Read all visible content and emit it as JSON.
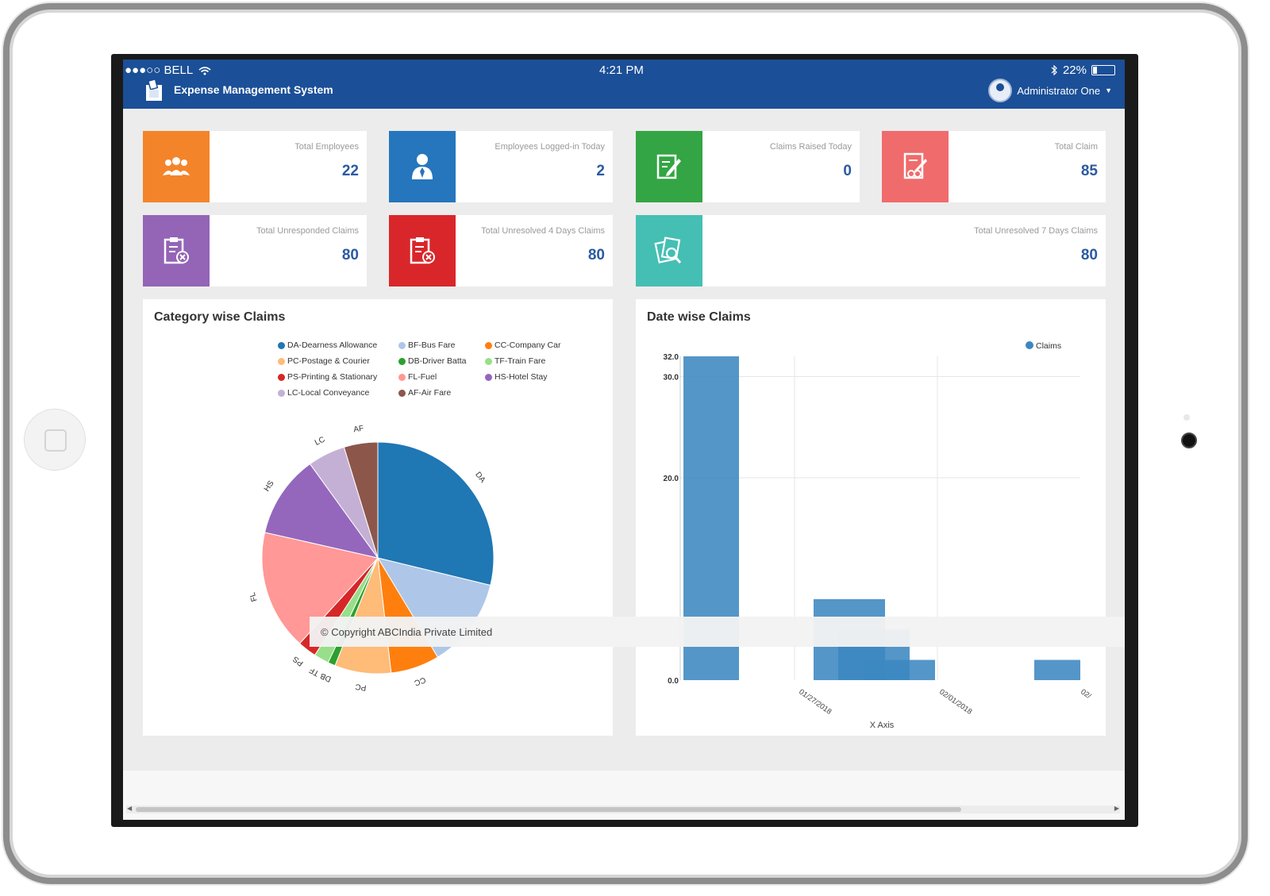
{
  "status_bar": {
    "carrier": "●●●○○ BELL",
    "time": "4:21 PM",
    "battery": "22%"
  },
  "app": {
    "title": "Expense Management System",
    "user": "Administrator One"
  },
  "colors": {
    "header": "#1b4f97",
    "orange": "#f4842a",
    "blue": "#2576bd",
    "green": "#33a544",
    "salmon": "#f06b6b",
    "purple": "#9464b6",
    "red": "#d9262a",
    "teal": "#45bfb3",
    "value": "#2c5aa0"
  },
  "cards": [
    {
      "label": "Total Employees",
      "value": "22",
      "icon": "users-group-icon"
    },
    {
      "label": "Employees Logged-in Today",
      "value": "2",
      "icon": "user-tie-icon"
    },
    {
      "label": "Claims Raised Today",
      "value": "0",
      "icon": "edit-document-icon"
    },
    {
      "label": "Total Claim",
      "value": "85",
      "icon": "document-stamp-icon"
    },
    {
      "label": "Total Unresponded Claims",
      "value": "80",
      "icon": "clipboard-cancel-icon"
    },
    {
      "label": "Total Unresolved 4 Days Claims",
      "value": "80",
      "icon": "clipboard-cancel-icon"
    },
    {
      "label": "Total Unresolved 7 Days Claims",
      "value": "80",
      "icon": "documents-search-icon"
    }
  ],
  "category_panel": {
    "title": "Category wise Claims"
  },
  "date_panel": {
    "title": "Date wise Claims"
  },
  "copyright": "© Copyright ABCIndia Private Limited",
  "chart_data": [
    {
      "type": "pie",
      "title": "Category wise Claims",
      "legend": [
        {
          "name": "DA-Dearness Allowance",
          "color": "#1f77b4"
        },
        {
          "name": "BF-Bus Fare",
          "color": "#aec7e8"
        },
        {
          "name": "CC-Company Car",
          "color": "#ff7f0e"
        },
        {
          "name": "PC-Postage & Courier",
          "color": "#ffbb78"
        },
        {
          "name": "DB-Driver Batta",
          "color": "#2ca02c"
        },
        {
          "name": "TF-Train Fare",
          "color": "#98df8a"
        },
        {
          "name": "PS-Printing & Stationary",
          "color": "#d62728"
        },
        {
          "name": "FL-Fuel",
          "color": "#ff9896"
        },
        {
          "name": "HS-Hotel Stay",
          "color": "#9467bd"
        },
        {
          "name": "LC-Local Conveyance",
          "color": "#c5b0d5"
        },
        {
          "name": "AF-Air Fare",
          "color": "#8c564b"
        }
      ],
      "slices": [
        {
          "label": "DA",
          "value": 27.5,
          "color": "#1f77b4"
        },
        {
          "label": "BF",
          "value": 12,
          "color": "#aec7e8"
        },
        {
          "label": "CC",
          "value": 6.5,
          "color": "#ff7f0e"
        },
        {
          "label": "PC",
          "value": 7.5,
          "color": "#ffbb78"
        },
        {
          "label": "DB",
          "value": 1,
          "color": "#2ca02c"
        },
        {
          "label": "TF",
          "value": 2,
          "color": "#98df8a"
        },
        {
          "label": "PS",
          "value": 2.5,
          "color": "#d62728"
        },
        {
          "label": "FL",
          "value": 16,
          "color": "#ff9896"
        },
        {
          "label": "HS",
          "value": 11,
          "color": "#9467bd"
        },
        {
          "label": "LC",
          "value": 5,
          "color": "#c5b0d5"
        },
        {
          "label": "AF",
          "value": 4.5,
          "color": "#8c564b"
        }
      ]
    },
    {
      "type": "bar",
      "title": "Date wise Claims",
      "xlabel": "X Axis",
      "series_name": "Claims",
      "series_color": "#3c87c0",
      "y_ticks": [
        "32.0",
        "30.0",
        "20.0",
        "0.0"
      ],
      "ylim": [
        0,
        32
      ],
      "x_ticks": [
        "01/27/2018",
        "02/01/2018",
        "02/"
      ],
      "bars": [
        {
          "x": "01/22/2018",
          "value": 32
        },
        {
          "x": "01/28/2018",
          "value": 8
        },
        {
          "x": "01/29/2018",
          "value": 5
        },
        {
          "x": "01/30/2018",
          "value": 2
        },
        {
          "x": "02/05/2018",
          "value": 2
        }
      ]
    }
  ]
}
